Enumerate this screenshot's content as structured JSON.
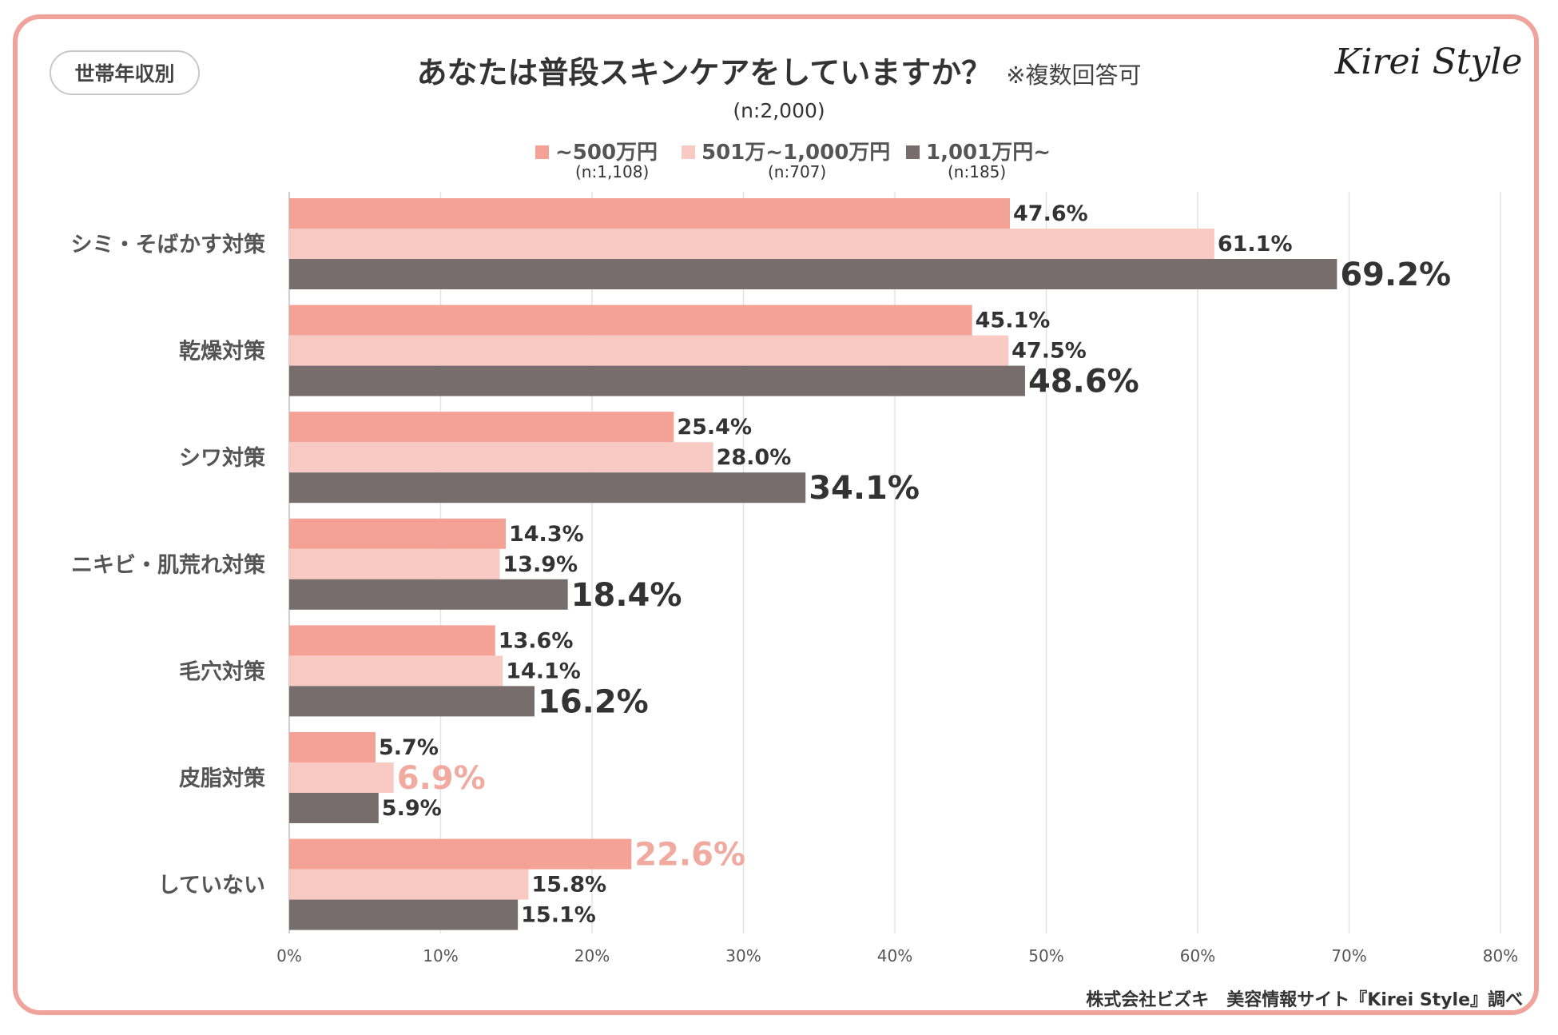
{
  "badge": "世帯年収別",
  "title": "あなたは普段スキンケアをしていますか？",
  "title_note": "※複数回答可",
  "sample_total": "(n:2,000)",
  "logo": "Kirei Style",
  "footer": "株式会社ビズキ　美容情報サイト『Kirei Style』調べ",
  "legend": [
    {
      "label": "~500万円",
      "n": "(n:1,108)"
    },
    {
      "label": "501万~1,000万円",
      "n": "(n:707)"
    },
    {
      "label": "1,001万円~",
      "n": "(n:185)"
    }
  ],
  "colors": {
    "series1": "#f4a196",
    "series2": "#f9c9c3",
    "series3": "#776d6d",
    "frame": "#efa39a",
    "highlight": "#f0aaa0"
  },
  "chart_data": {
    "type": "bar",
    "orientation": "horizontal",
    "categories": [
      "シミ・そばかす対策",
      "乾燥対策",
      "シワ対策",
      "ニキビ・肌荒れ対策",
      "毛穴対策",
      "皮脂対策",
      "していない"
    ],
    "series": [
      {
        "name": "~500万円",
        "values": [
          47.6,
          45.1,
          25.4,
          14.3,
          13.6,
          5.7,
          22.6
        ]
      },
      {
        "name": "501万~1,000万円",
        "values": [
          61.1,
          47.5,
          28.0,
          13.9,
          14.1,
          6.9,
          15.8
        ]
      },
      {
        "name": "1,001万円~",
        "values": [
          69.2,
          48.6,
          34.1,
          18.4,
          16.2,
          5.9,
          15.1
        ]
      }
    ],
    "data_labels": [
      [
        "47.6%",
        "45.1%",
        "25.4%",
        "14.3%",
        "13.6%",
        "5.7%",
        "22.6%"
      ],
      [
        "61.1%",
        "47.5%",
        "28.0%",
        "13.9%",
        "14.1%",
        "6.9%",
        "15.8%"
      ],
      [
        "69.2%",
        "48.6%",
        "34.1%",
        "18.4%",
        "16.2%",
        "5.9%",
        "15.1%"
      ]
    ],
    "highlighted": [
      {
        "series": 1,
        "category": 5
      },
      {
        "series": 0,
        "category": 6
      }
    ],
    "xlim": [
      0,
      80
    ],
    "xticks": [
      0,
      10,
      20,
      30,
      40,
      50,
      60,
      70,
      80
    ],
    "xtick_labels": [
      "0%",
      "10%",
      "20%",
      "30%",
      "40%",
      "50%",
      "60%",
      "70%",
      "80%"
    ],
    "grid": true,
    "legend_position": "top"
  }
}
